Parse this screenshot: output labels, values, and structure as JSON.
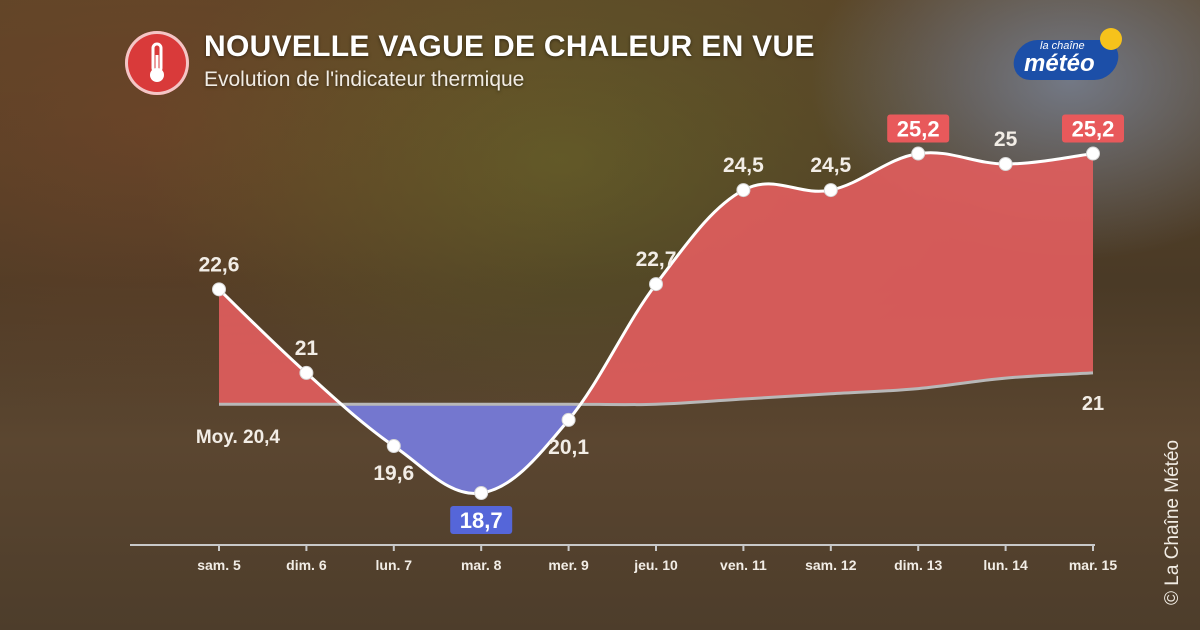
{
  "header": {
    "title": "NOUVELLE VAGUE DE CHALEUR EN VUE",
    "subtitle": "Evolution de l'indicateur thermique",
    "icon": "thermometer-icon"
  },
  "logo": {
    "top": "la chaîne",
    "main": "météo"
  },
  "copyright": "© La Chaîne Météo",
  "chart_data": {
    "type": "area",
    "categories": [
      "sam. 5",
      "dim. 6",
      "lun. 7",
      "mar. 8",
      "mer. 9",
      "jeu. 10",
      "ven. 11",
      "sam. 12",
      "dim. 13",
      "lun. 14",
      "mar. 15"
    ],
    "series": [
      {
        "values": [
          22.6,
          21,
          19.6,
          18.7,
          20.1,
          22.7,
          24.5,
          24.5,
          25.2,
          25,
          25.2
        ]
      },
      {
        "values": [
          20.4,
          20.4,
          20.4,
          20.4,
          20.4,
          20.4,
          20.5,
          20.6,
          20.7,
          20.9,
          21
        ]
      }
    ],
    "value_labels": [
      "22,6",
      "21",
      "19,6",
      "18,7",
      "20,1",
      "22,7",
      "24,5",
      "24,5",
      "25,2",
      "25",
      "25,2"
    ],
    "highlighted_labels": {
      "3": "blue",
      "8": "red",
      "10": "red"
    },
    "average_start_label": "Moy. 20,4",
    "average_end_label": "21",
    "ylim": [
      17.8,
      26.8
    ],
    "colors": {
      "above": "#e05d5d",
      "below": "#6f79d6",
      "line": "#ffffff",
      "average": "#b8b8b8",
      "badge_red": "#e8595b",
      "badge_blue": "#5566d9"
    },
    "grid": false
  }
}
